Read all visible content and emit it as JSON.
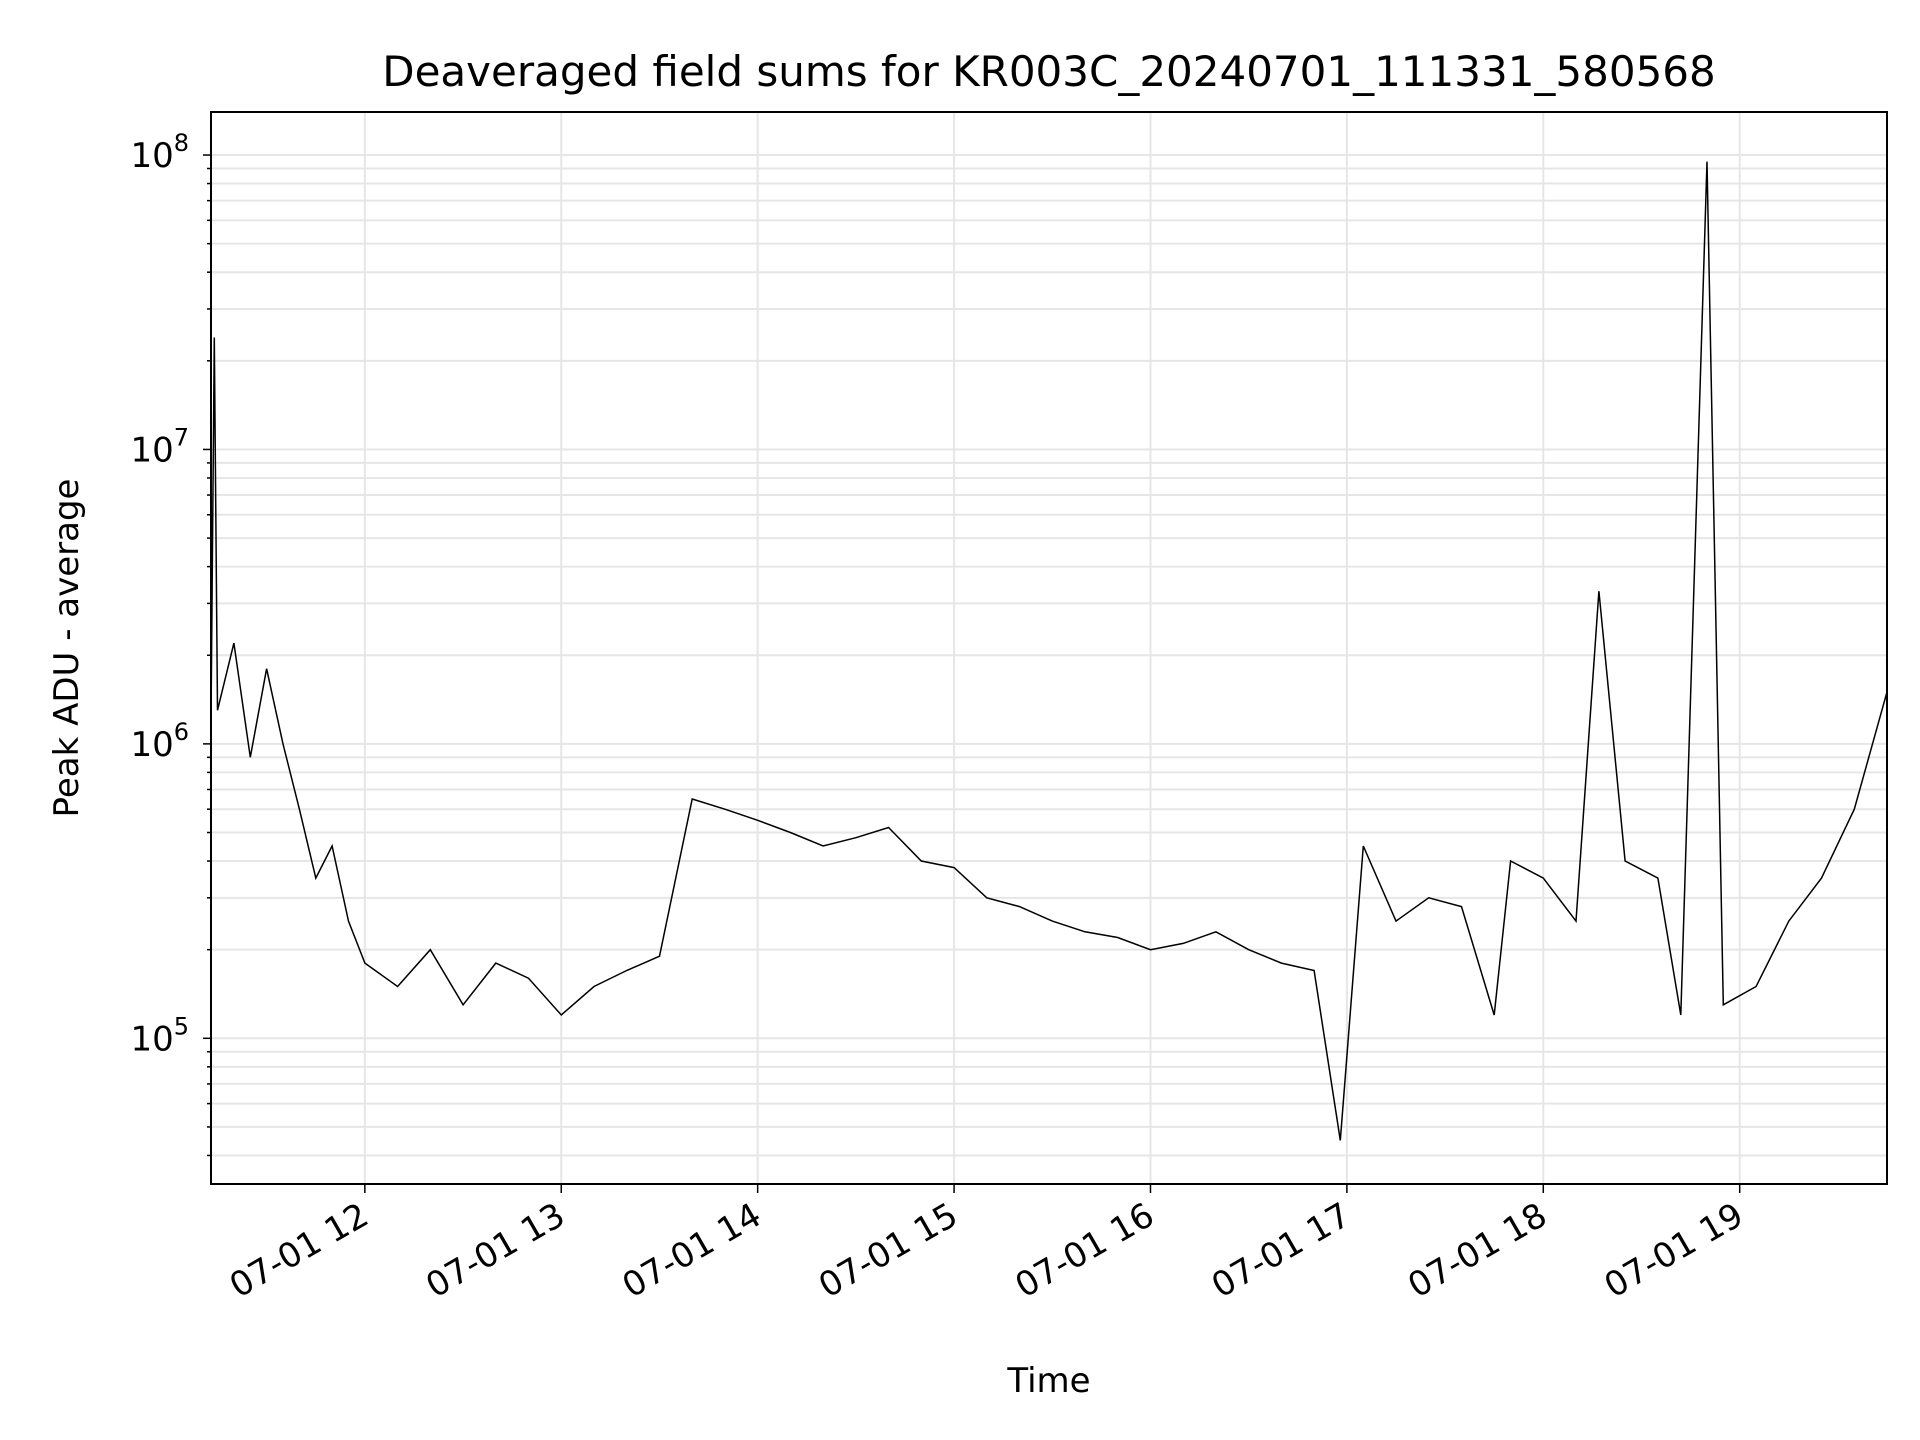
{
  "chart_data": {
    "type": "line",
    "title": "Deaveraged field sums for KR003C_20240701_111331_580568",
    "xlabel": "Time",
    "ylabel": "Peak ADU - average",
    "x_axis": {
      "type": "time",
      "range": [
        "2024-07-01 11:13",
        "2024-07-01 19:45"
      ],
      "ticks": [
        "2024-07-01 12:00",
        "2024-07-01 13:00",
        "2024-07-01 14:00",
        "2024-07-01 15:00",
        "2024-07-01 16:00",
        "2024-07-01 17:00",
        "2024-07-01 18:00",
        "2024-07-01 19:00"
      ],
      "tick_labels": [
        "07-01 12",
        "07-01 13",
        "07-01 14",
        "07-01 15",
        "07-01 16",
        "07-01 17",
        "07-01 18",
        "07-01 19"
      ]
    },
    "y_axis": {
      "scale": "log",
      "range": [
        32000,
        140000000
      ],
      "ticks": [
        100000,
        1000000,
        10000000,
        100000000
      ],
      "tick_labels": [
        {
          "base": "10",
          "exp": "5"
        },
        {
          "base": "10",
          "exp": "6"
        },
        {
          "base": "10",
          "exp": "7"
        },
        {
          "base": "10",
          "exp": "8"
        }
      ]
    },
    "grid": true,
    "line_color": "#000000",
    "grid_color": "#e6e6e6",
    "series": [
      {
        "points": [
          [
            "2024-07-01 11:13",
            1200000
          ],
          [
            "2024-07-01 11:14",
            24000000
          ],
          [
            "2024-07-01 11:15",
            1300000
          ],
          [
            "2024-07-01 11:20",
            2200000
          ],
          [
            "2024-07-01 11:25",
            900000
          ],
          [
            "2024-07-01 11:30",
            1800000
          ],
          [
            "2024-07-01 11:35",
            1000000
          ],
          [
            "2024-07-01 11:40",
            600000
          ],
          [
            "2024-07-01 11:45",
            350000
          ],
          [
            "2024-07-01 11:50",
            450000
          ],
          [
            "2024-07-01 11:55",
            250000
          ],
          [
            "2024-07-01 12:00",
            180000
          ],
          [
            "2024-07-01 12:10",
            150000
          ],
          [
            "2024-07-01 12:20",
            200000
          ],
          [
            "2024-07-01 12:30",
            130000
          ],
          [
            "2024-07-01 12:40",
            180000
          ],
          [
            "2024-07-01 12:50",
            160000
          ],
          [
            "2024-07-01 13:00",
            120000
          ],
          [
            "2024-07-01 13:10",
            150000
          ],
          [
            "2024-07-01 13:20",
            170000
          ],
          [
            "2024-07-01 13:30",
            190000
          ],
          [
            "2024-07-01 13:40",
            650000
          ],
          [
            "2024-07-01 13:50",
            600000
          ],
          [
            "2024-07-01 14:00",
            550000
          ],
          [
            "2024-07-01 14:10",
            500000
          ],
          [
            "2024-07-01 14:20",
            450000
          ],
          [
            "2024-07-01 14:30",
            480000
          ],
          [
            "2024-07-01 14:40",
            520000
          ],
          [
            "2024-07-01 14:50",
            400000
          ],
          [
            "2024-07-01 15:00",
            380000
          ],
          [
            "2024-07-01 15:10",
            300000
          ],
          [
            "2024-07-01 15:20",
            280000
          ],
          [
            "2024-07-01 15:30",
            250000
          ],
          [
            "2024-07-01 15:40",
            230000
          ],
          [
            "2024-07-01 15:50",
            220000
          ],
          [
            "2024-07-01 16:00",
            200000
          ],
          [
            "2024-07-01 16:10",
            210000
          ],
          [
            "2024-07-01 16:20",
            230000
          ],
          [
            "2024-07-01 16:30",
            200000
          ],
          [
            "2024-07-01 16:40",
            180000
          ],
          [
            "2024-07-01 16:50",
            170000
          ],
          [
            "2024-07-01 16:58",
            45000
          ],
          [
            "2024-07-01 17:05",
            450000
          ],
          [
            "2024-07-01 17:15",
            250000
          ],
          [
            "2024-07-01 17:25",
            300000
          ],
          [
            "2024-07-01 17:35",
            280000
          ],
          [
            "2024-07-01 17:45",
            120000
          ],
          [
            "2024-07-01 17:50",
            400000
          ],
          [
            "2024-07-01 18:00",
            350000
          ],
          [
            "2024-07-01 18:10",
            250000
          ],
          [
            "2024-07-01 18:17",
            3300000
          ],
          [
            "2024-07-01 18:25",
            400000
          ],
          [
            "2024-07-01 18:35",
            350000
          ],
          [
            "2024-07-01 18:42",
            120000
          ],
          [
            "2024-07-01 18:50",
            95000000
          ],
          [
            "2024-07-01 18:55",
            130000
          ],
          [
            "2024-07-01 19:05",
            150000
          ],
          [
            "2024-07-01 19:15",
            250000
          ],
          [
            "2024-07-01 19:25",
            350000
          ],
          [
            "2024-07-01 19:35",
            600000
          ],
          [
            "2024-07-01 19:45",
            1500000
          ]
        ]
      }
    ]
  }
}
